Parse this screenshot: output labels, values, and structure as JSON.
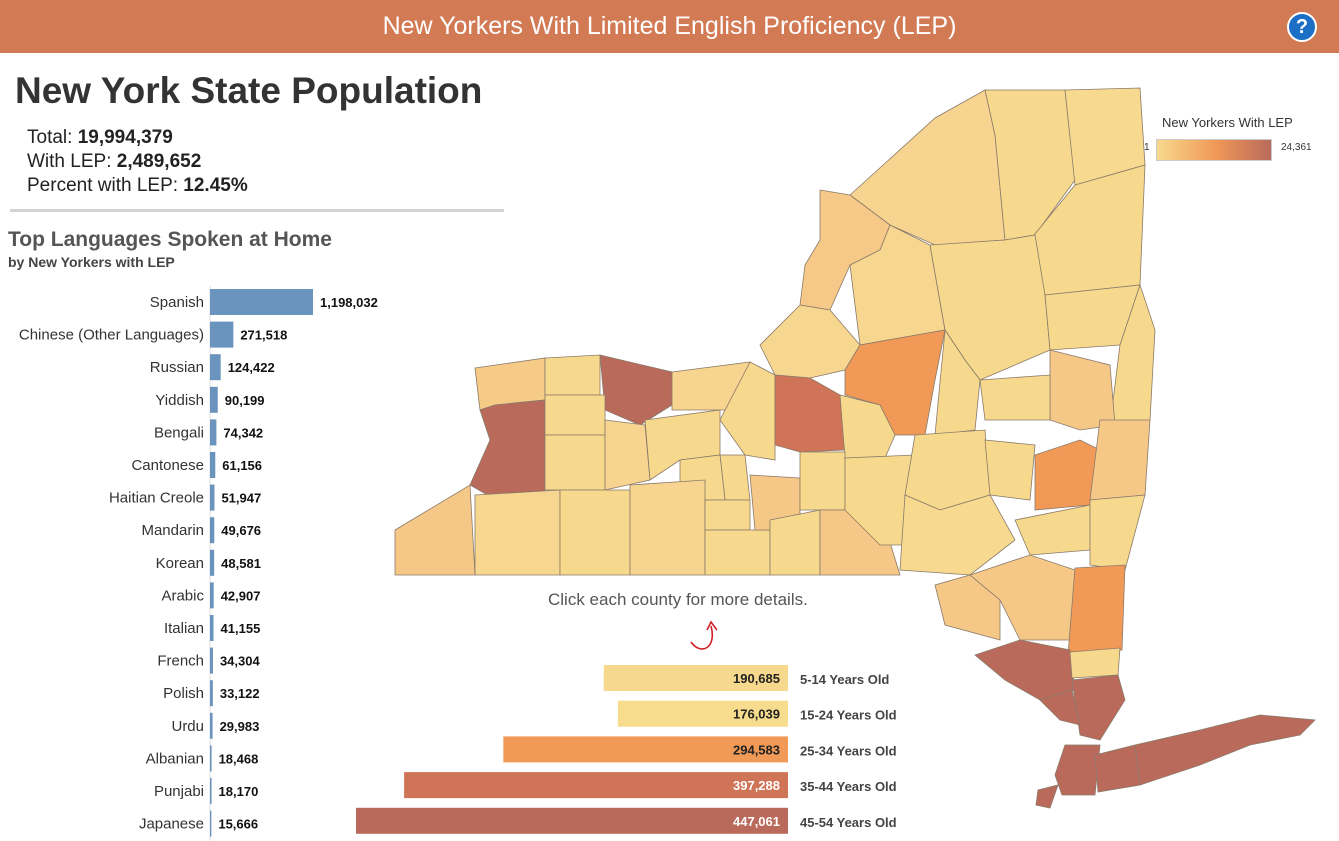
{
  "header": {
    "title": "New Yorkers With Limited English Proficiency (LEP)",
    "help_label": "?"
  },
  "summary": {
    "title": "New York State Population",
    "total_label": "Total: ",
    "total_value": "19,994,379",
    "lep_label": "With LEP: ",
    "lep_value": "2,489,652",
    "percent_label": "Percent with LEP: ",
    "percent_value": "12.45%"
  },
  "languages": {
    "title": "Top Languages Spoken at Home",
    "subtitle": "by New Yorkers with LEP"
  },
  "map": {
    "hint": "Click each county for more details.",
    "legend_title": "New Yorkers With LEP",
    "legend_min": "1",
    "legend_max": "24,361"
  },
  "chart_data": [
    {
      "type": "bar",
      "orientation": "horizontal",
      "color": "#6a93bd",
      "categories": [
        "Spanish",
        "Chinese (Other Languages)",
        "Russian",
        "Yiddish",
        "Bengali",
        "Cantonese",
        "Haitian Creole",
        "Mandarin",
        "Korean",
        "Arabic",
        "Italian",
        "French",
        "Polish",
        "Urdu",
        "Albanian",
        "Punjabi",
        "Japanese"
      ],
      "values": [
        1198032,
        271518,
        124422,
        90199,
        74342,
        61156,
        51947,
        49676,
        48581,
        42907,
        41155,
        34304,
        33122,
        29983,
        18468,
        18170,
        15666
      ],
      "value_labels": [
        "1,198,032",
        "271,518",
        "124,422",
        "90,199",
        "74,342",
        "61,156",
        "51,947",
        "49,676",
        "48,581",
        "42,907",
        "41,155",
        "34,304",
        "33,122",
        "29,983",
        "18,468",
        "18,170",
        "15,666"
      ]
    },
    {
      "type": "bar",
      "orientation": "horizontal",
      "categories": [
        "5-14 Years Old",
        "15-24 Years Old",
        "25-34 Years Old",
        "35-44 Years Old",
        "45-54 Years Old"
      ],
      "values": [
        190685,
        176039,
        294583,
        397288,
        447061
      ],
      "value_labels": [
        "190,685",
        "176,039",
        "294,583",
        "397,288",
        "447,061"
      ],
      "colors": [
        "#f7d98d",
        "#f7dc8d",
        "#f19a58",
        "#d07457",
        "#ba6a5b"
      ]
    }
  ]
}
